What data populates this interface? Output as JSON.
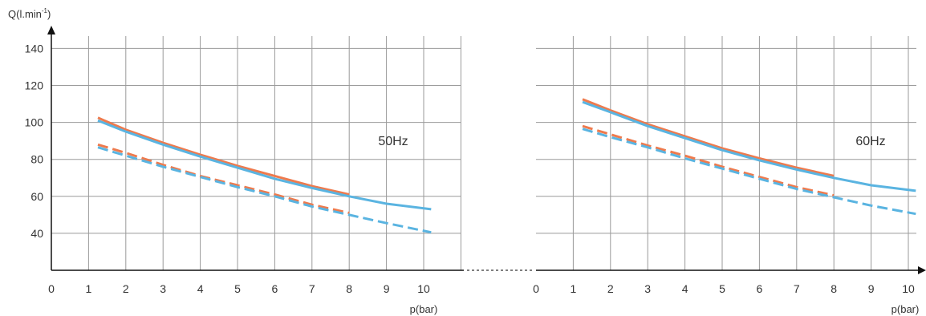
{
  "chart_data": [
    {
      "type": "line",
      "annotation": "50Hz",
      "ylabel": "Q(l.min",
      "ylabel_sup": "-1",
      "ylabel_close": ")",
      "xlabel": "p(bar)",
      "xlim": [
        0,
        11
      ],
      "ylim": [
        20,
        150
      ],
      "xticks": [
        0,
        1,
        2,
        3,
        4,
        5,
        6,
        7,
        8,
        9,
        10
      ],
      "yticks": [
        40,
        60,
        80,
        100,
        120,
        140
      ],
      "grid": true,
      "colors": {
        "orange": "#ee7a4d",
        "blue": "#5ab4e1"
      },
      "series": [
        {
          "color": "orange",
          "dash": false,
          "x": [
            1.25,
            2,
            3,
            4,
            5,
            6,
            7,
            8
          ],
          "y": [
            102.5,
            96,
            89,
            82.5,
            76.5,
            71,
            65.5,
            61
          ]
        },
        {
          "color": "blue",
          "dash": false,
          "x": [
            1.25,
            2,
            3,
            4,
            5,
            6,
            7,
            8,
            9,
            10.2
          ],
          "y": [
            101,
            95,
            88,
            81.5,
            75.5,
            69.5,
            64.5,
            60,
            56,
            53
          ]
        },
        {
          "color": "orange",
          "dash": true,
          "x": [
            1.25,
            2,
            3,
            4,
            5,
            6,
            7,
            8
          ],
          "y": [
            88,
            83.5,
            77,
            71,
            66,
            61,
            55.5,
            51
          ]
        },
        {
          "color": "blue",
          "dash": true,
          "x": [
            1.25,
            2,
            3,
            4,
            5,
            6,
            7,
            8,
            9,
            10.2
          ],
          "y": [
            86.5,
            82,
            76,
            70.5,
            65,
            60,
            54.5,
            50,
            45.5,
            40.5
          ]
        }
      ]
    },
    {
      "type": "line",
      "annotation": "60Hz",
      "xlabel": "p(bar)",
      "xlim": [
        0,
        11
      ],
      "ylim": [
        20,
        150
      ],
      "xticks": [
        0,
        1,
        2,
        3,
        4,
        5,
        6,
        7,
        8,
        9,
        10
      ],
      "grid": true,
      "colors": {
        "orange": "#ee7a4d",
        "blue": "#5ab4e1"
      },
      "series": [
        {
          "color": "orange",
          "dash": false,
          "x": [
            1.25,
            2,
            3,
            4,
            5,
            6,
            7,
            8
          ],
          "y": [
            112.5,
            106.5,
            99,
            92.5,
            86,
            80.5,
            75.5,
            71
          ]
        },
        {
          "color": "blue",
          "dash": false,
          "x": [
            1.25,
            2,
            3,
            4,
            5,
            6,
            7,
            8,
            9,
            10.2
          ],
          "y": [
            111,
            105.5,
            98,
            91.5,
            85,
            79.5,
            74.5,
            70,
            66,
            63
          ]
        },
        {
          "color": "orange",
          "dash": true,
          "x": [
            1.25,
            2,
            3,
            4,
            5,
            6,
            7,
            8
          ],
          "y": [
            98,
            93.5,
            87.5,
            82,
            76,
            70.5,
            65,
            60.5
          ]
        },
        {
          "color": "blue",
          "dash": true,
          "x": [
            1.25,
            2,
            3,
            4,
            5,
            6,
            7,
            8,
            9,
            10.2
          ],
          "y": [
            96.5,
            92,
            86.5,
            80.5,
            75,
            69.5,
            64,
            59.5,
            55,
            50.5
          ]
        }
      ]
    }
  ]
}
